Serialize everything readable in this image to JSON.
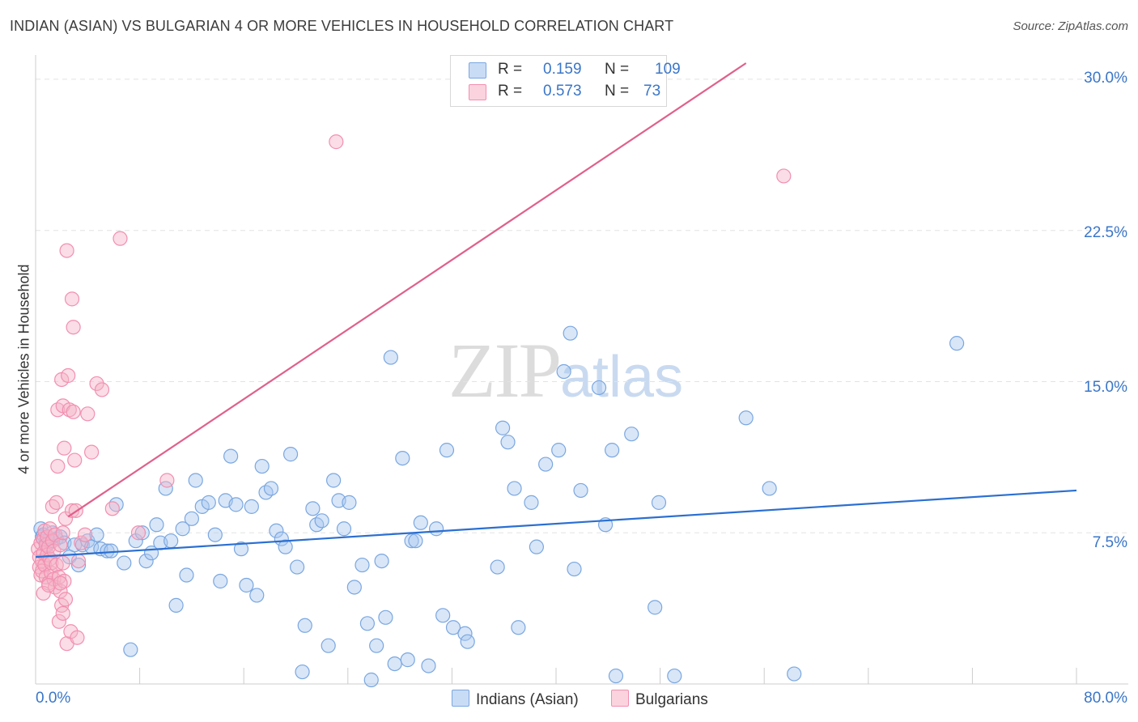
{
  "header": {
    "title": "INDIAN (ASIAN) VS BULGARIAN 4 OR MORE VEHICLES IN HOUSEHOLD CORRELATION CHART",
    "source": "Source: ZipAtlas.com"
  },
  "watermark": {
    "zip": "ZIP",
    "atlas": "atlas"
  },
  "legend": {
    "r_label": "R =",
    "n_label": "N =",
    "rows": [
      {
        "r": "0.159",
        "n": "109",
        "color": "#a9c8f0"
      },
      {
        "r": "0.573",
        "n": "73",
        "color": "#f5b3c7"
      }
    ]
  },
  "bottom_legend": [
    {
      "name": "Indians (Asian)",
      "color": "#a9c8f0"
    },
    {
      "name": "Bulgarians",
      "color": "#f5b3c7"
    }
  ],
  "chart_data": {
    "type": "scatter",
    "title": "INDIAN (ASIAN) VS BULGARIAN 4 OR MORE VEHICLES IN HOUSEHOLD CORRELATION CHART",
    "xlabel": "",
    "ylabel": "4 or more Vehicles in Household",
    "xlim": [
      0,
      80
    ],
    "ylim": [
      0,
      30.8
    ],
    "x_tick_labels": [
      "0.0%",
      "80.0%"
    ],
    "y_ticks": [
      7.5,
      15,
      22.5,
      30
    ],
    "y_tick_labels": [
      "7.5%",
      "15.0%",
      "22.5%",
      "30.0%"
    ],
    "grid": true,
    "legend_position": "top-center",
    "series": [
      {
        "name": "Indians (Asian)",
        "color": "#7aa7e0",
        "line_color": "#2b6fd1",
        "r": 0.159,
        "n": 109,
        "trend": {
          "x": [
            0,
            80
          ],
          "y": [
            6.3,
            9.6
          ]
        },
        "points": [
          [
            0.4,
            7.7
          ],
          [
            0.5,
            7.3
          ],
          [
            0.6,
            7.4
          ],
          [
            0.8,
            7.1
          ],
          [
            0.9,
            6.9
          ],
          [
            1.1,
            7.2
          ],
          [
            1.3,
            7.5
          ],
          [
            1.6,
            7.2
          ],
          [
            1.9,
            7.3
          ],
          [
            2.2,
            7.0
          ],
          [
            2.6,
            6.3
          ],
          [
            3.0,
            6.9
          ],
          [
            3.3,
            5.9
          ],
          [
            3.6,
            6.9
          ],
          [
            4.0,
            7.1
          ],
          [
            4.3,
            6.8
          ],
          [
            4.7,
            7.4
          ],
          [
            5.0,
            6.7
          ],
          [
            5.5,
            6.6
          ],
          [
            5.8,
            6.6
          ],
          [
            6.2,
            8.9
          ],
          [
            6.8,
            6.0
          ],
          [
            7.3,
            1.7
          ],
          [
            7.7,
            7.1
          ],
          [
            8.2,
            7.5
          ],
          [
            8.5,
            6.1
          ],
          [
            8.9,
            6.5
          ],
          [
            9.3,
            7.9
          ],
          [
            9.6,
            7.0
          ],
          [
            10.0,
            9.7
          ],
          [
            10.4,
            7.1
          ],
          [
            10.8,
            3.9
          ],
          [
            11.3,
            7.7
          ],
          [
            11.6,
            5.4
          ],
          [
            12.0,
            8.2
          ],
          [
            12.3,
            10.1
          ],
          [
            12.8,
            8.8
          ],
          [
            13.3,
            9.0
          ],
          [
            13.8,
            7.4
          ],
          [
            14.2,
            5.1
          ],
          [
            14.6,
            9.1
          ],
          [
            15.0,
            11.3
          ],
          [
            15.4,
            8.9
          ],
          [
            15.8,
            6.7
          ],
          [
            16.2,
            4.9
          ],
          [
            16.6,
            8.8
          ],
          [
            17.0,
            4.4
          ],
          [
            17.4,
            10.8
          ],
          [
            17.7,
            9.5
          ],
          [
            18.1,
            9.7
          ],
          [
            18.5,
            7.6
          ],
          [
            18.9,
            7.2
          ],
          [
            19.2,
            6.8
          ],
          [
            19.6,
            11.4
          ],
          [
            20.1,
            5.8
          ],
          [
            20.5,
            0.6
          ],
          [
            20.7,
            2.9
          ],
          [
            21.3,
            8.7
          ],
          [
            21.6,
            7.9
          ],
          [
            22.0,
            8.1
          ],
          [
            22.5,
            1.9
          ],
          [
            22.9,
            10.1
          ],
          [
            23.3,
            9.1
          ],
          [
            23.7,
            7.7
          ],
          [
            24.1,
            9.0
          ],
          [
            24.5,
            4.8
          ],
          [
            25.1,
            5.9
          ],
          [
            25.5,
            3.0
          ],
          [
            25.8,
            0.2
          ],
          [
            26.2,
            1.9
          ],
          [
            26.6,
            6.1
          ],
          [
            26.9,
            3.3
          ],
          [
            27.3,
            16.2
          ],
          [
            27.6,
            1.0
          ],
          [
            28.2,
            11.2
          ],
          [
            28.6,
            1.2
          ],
          [
            28.9,
            7.1
          ],
          [
            29.2,
            7.1
          ],
          [
            29.6,
            8.0
          ],
          [
            30.2,
            0.9
          ],
          [
            30.8,
            7.7
          ],
          [
            31.3,
            3.4
          ],
          [
            31.6,
            11.6
          ],
          [
            32.1,
            2.8
          ],
          [
            33.0,
            2.5
          ],
          [
            33.2,
            2.1
          ],
          [
            35.5,
            5.8
          ],
          [
            35.9,
            12.7
          ],
          [
            36.3,
            12.0
          ],
          [
            36.8,
            9.7
          ],
          [
            37.1,
            2.8
          ],
          [
            38.1,
            9.0
          ],
          [
            38.5,
            6.8
          ],
          [
            39.2,
            10.9
          ],
          [
            40.2,
            11.6
          ],
          [
            40.6,
            15.5
          ],
          [
            41.1,
            17.4
          ],
          [
            41.4,
            5.7
          ],
          [
            41.9,
            9.6
          ],
          [
            43.3,
            14.7
          ],
          [
            43.8,
            7.9
          ],
          [
            44.3,
            11.6
          ],
          [
            44.6,
            0.4
          ],
          [
            45.8,
            12.4
          ],
          [
            47.6,
            3.8
          ],
          [
            47.9,
            9.0
          ],
          [
            49.1,
            0.4
          ],
          [
            54.6,
            13.2
          ],
          [
            56.4,
            9.7
          ],
          [
            58.3,
            0.5
          ],
          [
            70.8,
            16.9
          ]
        ]
      },
      {
        "name": "Bulgarians",
        "color": "#f28fb0",
        "line_color": "#e0608c",
        "r": 0.573,
        "n": 73,
        "trend": {
          "x": [
            2.5,
            54.6
          ],
          "y": [
            8.3,
            30.8
          ]
        },
        "points": [
          [
            0.2,
            6.7
          ],
          [
            0.3,
            6.3
          ],
          [
            0.3,
            5.8
          ],
          [
            0.4,
            5.4
          ],
          [
            0.4,
            7.0
          ],
          [
            0.5,
            6.1
          ],
          [
            0.5,
            5.6
          ],
          [
            0.6,
            7.2
          ],
          [
            0.6,
            6.5
          ],
          [
            0.7,
            5.9
          ],
          [
            0.7,
            7.6
          ],
          [
            0.8,
            6.9
          ],
          [
            0.8,
            5.3
          ],
          [
            0.9,
            6.4
          ],
          [
            0.9,
            7.3
          ],
          [
            1.0,
            5.0
          ],
          [
            1.0,
            6.8
          ],
          [
            1.1,
            6.2
          ],
          [
            1.1,
            7.7
          ],
          [
            1.2,
            5.5
          ],
          [
            1.2,
            6.0
          ],
          [
            1.3,
            7.1
          ],
          [
            1.3,
            8.8
          ],
          [
            1.4,
            5.2
          ],
          [
            1.4,
            6.6
          ],
          [
            1.5,
            4.8
          ],
          [
            1.5,
            7.4
          ],
          [
            1.6,
            5.9
          ],
          [
            1.6,
            9.0
          ],
          [
            1.7,
            13.6
          ],
          [
            1.7,
            10.8
          ],
          [
            1.8,
            3.1
          ],
          [
            1.8,
            5.3
          ],
          [
            1.9,
            6.9
          ],
          [
            1.9,
            4.6
          ],
          [
            2.0,
            15.1
          ],
          [
            2.0,
            3.9
          ],
          [
            2.1,
            6.0
          ],
          [
            2.1,
            7.5
          ],
          [
            2.1,
            13.8
          ],
          [
            2.1,
            3.5
          ],
          [
            2.2,
            11.7
          ],
          [
            2.2,
            5.1
          ],
          [
            2.3,
            8.2
          ],
          [
            2.3,
            4.2
          ],
          [
            2.4,
            21.5
          ],
          [
            2.4,
            2.0
          ],
          [
            2.5,
            15.3
          ],
          [
            2.6,
            13.6
          ],
          [
            2.7,
            2.6
          ],
          [
            2.8,
            19.1
          ],
          [
            2.8,
            8.6
          ],
          [
            2.9,
            17.7
          ],
          [
            2.9,
            13.5
          ],
          [
            3.0,
            11.1
          ],
          [
            3.1,
            8.6
          ],
          [
            3.2,
            2.3
          ],
          [
            3.3,
            6.1
          ],
          [
            3.5,
            7.0
          ],
          [
            3.8,
            7.4
          ],
          [
            4.0,
            13.4
          ],
          [
            4.3,
            11.5
          ],
          [
            4.7,
            14.9
          ],
          [
            5.1,
            14.6
          ],
          [
            5.9,
            8.7
          ],
          [
            6.5,
            22.1
          ],
          [
            7.9,
            7.5
          ],
          [
            10.1,
            10.1
          ],
          [
            23.1,
            26.9
          ],
          [
            57.5,
            25.2
          ],
          [
            0.6,
            4.5
          ],
          [
            1.0,
            4.9
          ],
          [
            1.9,
            5.0
          ]
        ]
      }
    ]
  }
}
